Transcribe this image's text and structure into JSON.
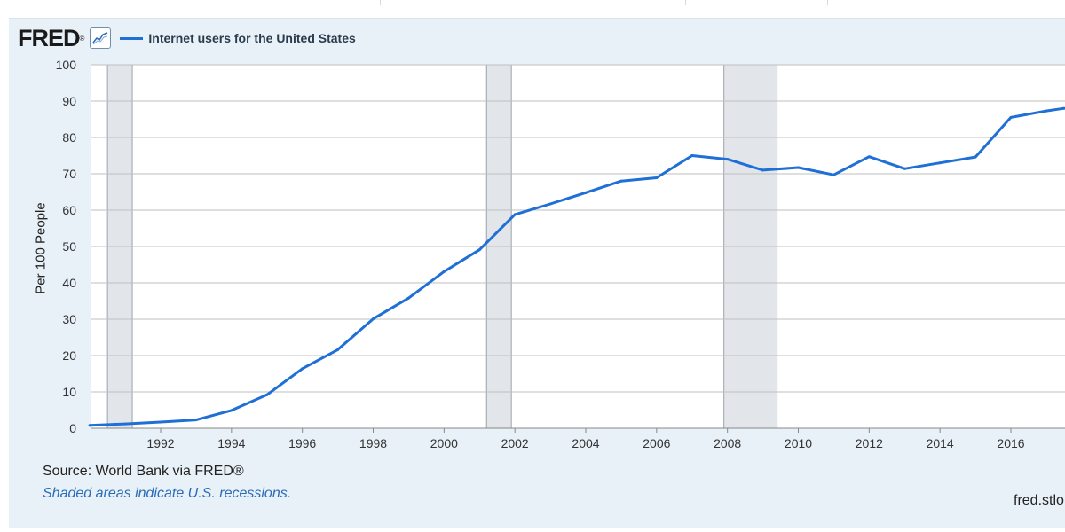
{
  "header": {
    "logo_text": "FRED",
    "logo_mark": "®",
    "icon": "line-chart-icon"
  },
  "chart_data": {
    "type": "line",
    "title": "",
    "xlabel": "",
    "ylabel": "Per 100 People",
    "xlim": [
      1990,
      2017.5
    ],
    "ylim": [
      0,
      100
    ],
    "yticks": [
      0,
      10,
      20,
      30,
      40,
      50,
      60,
      70,
      80,
      90,
      100
    ],
    "xticks": [
      1992,
      1994,
      1996,
      1998,
      2000,
      2002,
      2004,
      2006,
      2008,
      2010,
      2012,
      2014,
      2016
    ],
    "grid": true,
    "legend_position": "top-left",
    "series": [
      {
        "name": "Internet users for the United States",
        "color": "#1f6fd6",
        "x": [
          1990,
          1991,
          1992,
          1993,
          1994,
          1995,
          1996,
          1997,
          1998,
          1999,
          2000,
          2001,
          2002,
          2003,
          2004,
          2005,
          2006,
          2007,
          2008,
          2009,
          2010,
          2011,
          2012,
          2013,
          2014,
          2015,
          2016,
          2017,
          2017.5
        ],
        "values": [
          0.8,
          1.2,
          1.7,
          2.3,
          4.9,
          9.2,
          16.4,
          21.6,
          30.1,
          35.8,
          43.1,
          49.1,
          58.8,
          61.7,
          64.8,
          68.0,
          68.9,
          75.0,
          74.0,
          71.0,
          71.7,
          69.7,
          74.7,
          71.4,
          73.0,
          74.6,
          85.5,
          87.3,
          88.0
        ]
      }
    ],
    "recessions": [
      {
        "start": 1990.5,
        "end": 1991.2
      },
      {
        "start": 2001.2,
        "end": 2001.9
      },
      {
        "start": 2007.9,
        "end": 2009.4
      }
    ]
  },
  "footer": {
    "source": "Source: World Bank via FRED®",
    "note": "Shaded areas indicate U.S. recessions.",
    "site": "fred.stlo"
  },
  "colors": {
    "line": "#1f6fd6",
    "recession": "#e2e6ea",
    "grid": "#bfbfbf",
    "panel": "#e8f1f8"
  }
}
